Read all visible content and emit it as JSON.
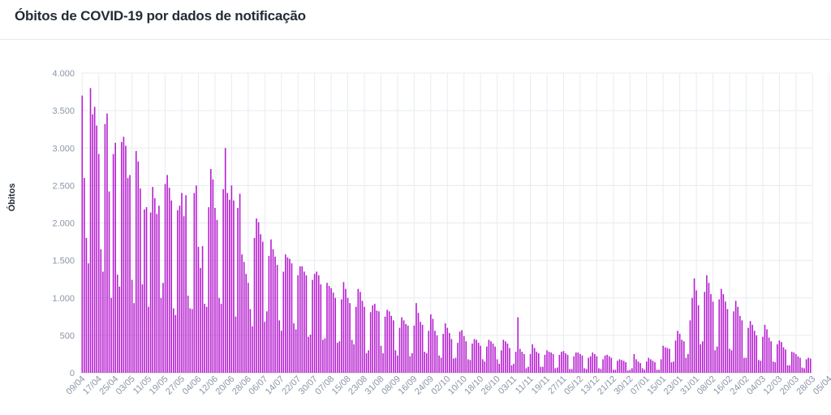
{
  "header": {
    "title": "Óbitos de COVID-19 por dados de notificação"
  },
  "colors": {
    "bar": "#b51ecf",
    "grid": "#e8ebf0",
    "text": "#222b36",
    "tick": "#8a96a8"
  },
  "chart_data": {
    "type": "bar",
    "title": "Óbitos de COVID-19 por dados de notificação",
    "xlabel": "",
    "ylabel": "Óbitos",
    "ylim": [
      0,
      4000
    ],
    "grid": true,
    "legend": "none",
    "yticks": [
      0,
      500,
      1000,
      1500,
      2000,
      2500,
      3000,
      3500,
      4000
    ],
    "ytick_labels": [
      "0",
      "500",
      "1.000",
      "1.500",
      "2.000",
      "2.500",
      "3.000",
      "3.500",
      "4.000"
    ],
    "x_start": "2020-04-09",
    "xtick_labels": [
      "09/04",
      "17/04",
      "25/04",
      "03/05",
      "11/05",
      "19/05",
      "27/05",
      "04/06",
      "12/06",
      "20/06",
      "28/06",
      "06/07",
      "14/07",
      "22/07",
      "30/07",
      "07/08",
      "15/08",
      "23/08",
      "31/08",
      "08/09",
      "16/09",
      "24/09",
      "02/10",
      "10/10",
      "18/10",
      "26/10",
      "03/11",
      "11/11",
      "19/11",
      "27/11",
      "05/12",
      "13/12",
      "21/12",
      "30/12",
      "07/01",
      "15/01",
      "23/01",
      "31/01",
      "08/02",
      "16/02",
      "24/02",
      "04/03",
      "12/03",
      "20/03",
      "28/03",
      "05/04"
    ],
    "weekly_peaks": [
      3800,
      3460,
      3150,
      2950,
      2600,
      2480,
      2500,
      3000,
      2400,
      2080,
      1780,
      1580,
      1430,
      1350,
      1220,
      1120,
      920,
      830,
      740,
      930,
      790,
      690,
      580,
      460,
      440,
      360,
      740,
      380,
      310,
      300,
      270,
      290,
      280,
      270,
      180,
      360,
      1000,
      1300,
      1120,
      980,
      690,
      600,
      440,
      380,
      280,
      180
    ],
    "values": [
      3700,
      2600,
      1800,
      1460,
      3800,
      3450,
      3550,
      3300,
      2920,
      1650,
      1350,
      3320,
      3460,
      2420,
      1000,
      2920,
      3070,
      1310,
      1150,
      3080,
      3150,
      3030,
      2600,
      2640,
      1240,
      930,
      2960,
      2820,
      2460,
      1180,
      2180,
      2210,
      880,
      2140,
      2480,
      2330,
      2120,
      2230,
      1000,
      1200,
      2520,
      2640,
      2470,
      2300,
      860,
      770,
      2170,
      2230,
      2400,
      2090,
      2370,
      1030,
      860,
      850,
      2400,
      2500,
      1680,
      1400,
      1690,
      920,
      880,
      2210,
      2720,
      2580,
      2200,
      2040,
      1000,
      920,
      2450,
      3000,
      2400,
      2310,
      2500,
      2300,
      750,
      2200,
      2390,
      1580,
      1480,
      1320,
      1200,
      850,
      620,
      1800,
      2060,
      2010,
      1850,
      1750,
      680,
      820,
      1560,
      1780,
      1650,
      1550,
      1440,
      700,
      560,
      1350,
      1580,
      1540,
      1520,
      1460,
      660,
      580,
      1300,
      1420,
      1420,
      1350,
      1300,
      480,
      510,
      1240,
      1320,
      1350,
      1300,
      1180,
      440,
      460,
      1200,
      1160,
      1130,
      1070,
      1000,
      400,
      420,
      980,
      1210,
      1120,
      1000,
      930,
      440,
      380,
      880,
      1120,
      1080,
      960,
      880,
      260,
      300,
      810,
      900,
      920,
      830,
      820,
      360,
      260,
      750,
      840,
      820,
      760,
      700,
      300,
      230,
      600,
      740,
      700,
      650,
      630,
      220,
      260,
      630,
      930,
      800,
      680,
      640,
      280,
      260,
      560,
      780,
      720,
      560,
      500,
      230,
      200,
      520,
      660,
      600,
      530,
      450,
      190,
      200,
      400,
      550,
      570,
      490,
      420,
      180,
      170,
      390,
      450,
      440,
      400,
      360,
      180,
      150,
      350,
      440,
      420,
      390,
      350,
      180,
      120,
      300,
      440,
      420,
      390,
      330,
      100,
      120,
      280,
      740,
      320,
      280,
      250,
      60,
      80,
      250,
      380,
      330,
      280,
      260,
      80,
      80,
      240,
      300,
      280,
      270,
      250,
      60,
      70,
      240,
      280,
      290,
      260,
      240,
      50,
      50,
      220,
      270,
      270,
      250,
      230,
      60,
      50,
      200,
      220,
      270,
      250,
      220,
      60,
      50,
      180,
      230,
      240,
      220,
      200,
      40,
      40,
      160,
      180,
      170,
      160,
      140,
      30,
      40,
      60,
      250,
      180,
      150,
      130,
      60,
      40,
      150,
      200,
      180,
      160,
      140,
      40,
      40,
      180,
      360,
      340,
      330,
      320,
      140,
      150,
      430,
      560,
      520,
      440,
      420,
      200,
      250,
      700,
      1000,
      1260,
      1100,
      900,
      380,
      420,
      1080,
      1300,
      1200,
      1050,
      950,
      300,
      350,
      980,
      1120,
      1050,
      950,
      850,
      320,
      300,
      820,
      960,
      880,
      760,
      700,
      200,
      200,
      600,
      690,
      640,
      560,
      500,
      170,
      160,
      480,
      640,
      580,
      470,
      420,
      150,
      140,
      380,
      430,
      410,
      340,
      310,
      100,
      100,
      280,
      270,
      250,
      220,
      200,
      70,
      60,
      180,
      200,
      190
    ]
  }
}
